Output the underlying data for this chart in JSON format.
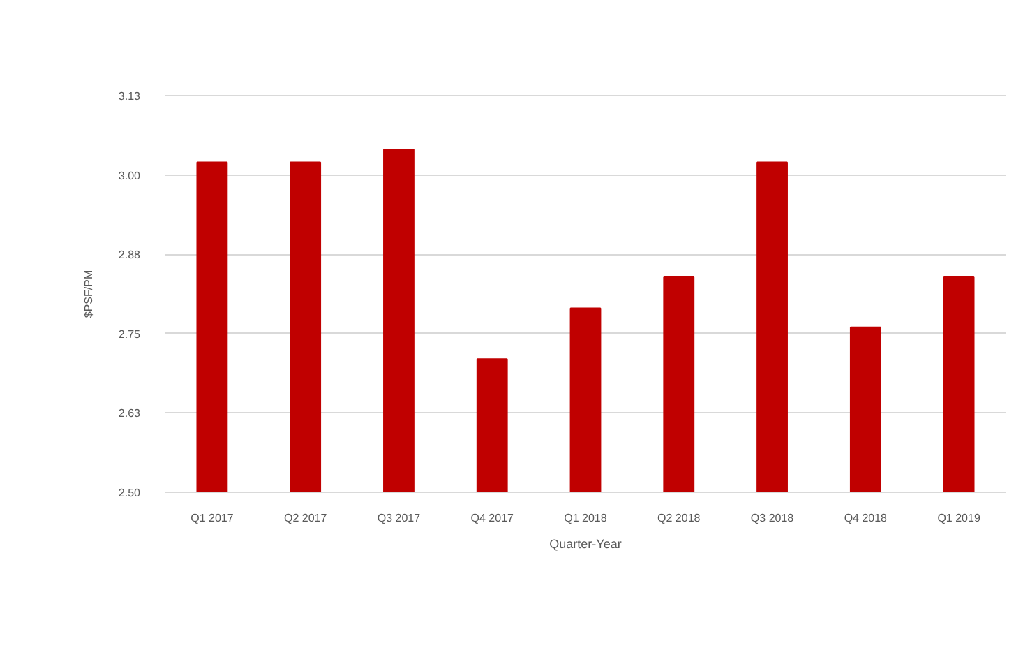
{
  "chart_data": {
    "type": "bar",
    "xlabel": "Quarter-Year",
    "ylabel": "$PSF/PM",
    "categories": [
      "Q1 2017",
      "Q2 2017",
      "Q3 2017",
      "Q4 2017",
      "Q1 2018",
      "Q2 2018",
      "Q3 2018",
      "Q4 2018",
      "Q1 2019"
    ],
    "values": [
      3.02,
      3.02,
      3.04,
      2.71,
      2.79,
      2.84,
      3.02,
      2.76,
      2.84
    ],
    "color": "#c00000",
    "ylim": [
      2.5,
      3.125
    ],
    "yticks": [
      {
        "value": 2.5,
        "label": "2.50"
      },
      {
        "value": 2.625,
        "label": "2.63"
      },
      {
        "value": 2.75,
        "label": "2.75"
      },
      {
        "value": 2.875,
        "label": "2.88"
      },
      {
        "value": 3.0,
        "label": "3.00"
      },
      {
        "value": 3.125,
        "label": "3.13"
      }
    ],
    "grid": "y",
    "legend": false
  }
}
